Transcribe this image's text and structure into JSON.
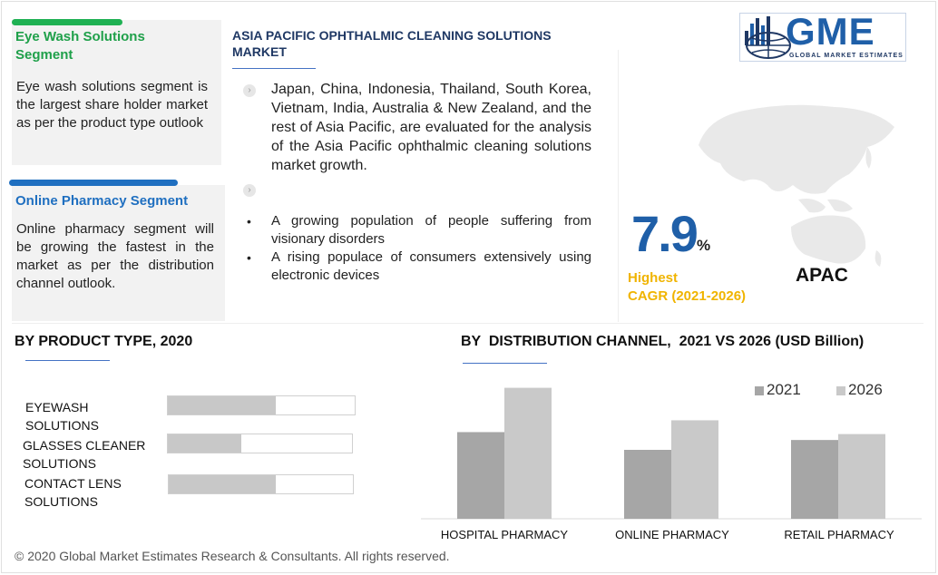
{
  "segments": [
    {
      "title": "Eye Wash Solutions Segment",
      "text": "Eye wash solutions segment is the largest share holder market as per the product type outlook",
      "accent": "#1fb153"
    },
    {
      "title": "Online Pharmacy Segment",
      "text": "Online pharmacy segment will be growing the fastest in the market as per the distribution channel outlook.",
      "accent": "#1f6fc0"
    }
  ],
  "market": {
    "title": "ASIA PACIFIC OPHTHALMIC CLEANING SOLUTIONS MARKET",
    "intro": "Japan, China, Indonesia, Thailand, South Korea, Vietnam, India, Australia & New Zealand, and the rest of Asia Pacific, are evaluated for the analysis of the Asia Pacific ophthalmic cleaning solutions market growth.",
    "drivers": [
      "A growing population of people suffering from visionary disorders",
      "A rising populace of consumers extensively using electronic devices"
    ]
  },
  "logo": {
    "name": "GME",
    "tagline": "GLOBAL MARKET ESTIMATES"
  },
  "highlight": {
    "cagr": "7.9",
    "cagr_unit": "%",
    "label_line1": "Highest",
    "label_line2": "CAGR (2021-2026)",
    "region": "APAC"
  },
  "product_type": {
    "title": "BY PRODUCT TYPE,  2020",
    "items": [
      {
        "label": "EYEWASH SOLUTIONS",
        "share": 0.58
      },
      {
        "label": "GLASSES CLEANER SOLUTIONS",
        "share": 0.4
      },
      {
        "label": "CONTACT LENS SOLUTIONS",
        "share": 0.58
      }
    ]
  },
  "chart_data": {
    "type": "bar",
    "title": "BY  DISTRIBUTION CHANNEL,  2021 VS 2026 (USD Billion)",
    "categories": [
      "HOSPITAL PHARMACY",
      "ONLINE PHARMACY",
      "RETAIL PHARMACY"
    ],
    "series": [
      {
        "name": "2021",
        "values": [
          88,
          70,
          80
        ],
        "color": "#a6a6a6"
      },
      {
        "name": "2026",
        "values": [
          133,
          100,
          86
        ],
        "color": "#c9c9c9"
      }
    ],
    "ylim": [
      0,
      140
    ],
    "grid": false,
    "legend": "top-right"
  },
  "footer": "© 2020 Global Market Estimates Research & Consultants. All rights reserved.",
  "colors": {
    "navy": "#1f3864",
    "blue": "#1f5fa8",
    "gold": "#f0b400",
    "green": "#1fb153"
  }
}
